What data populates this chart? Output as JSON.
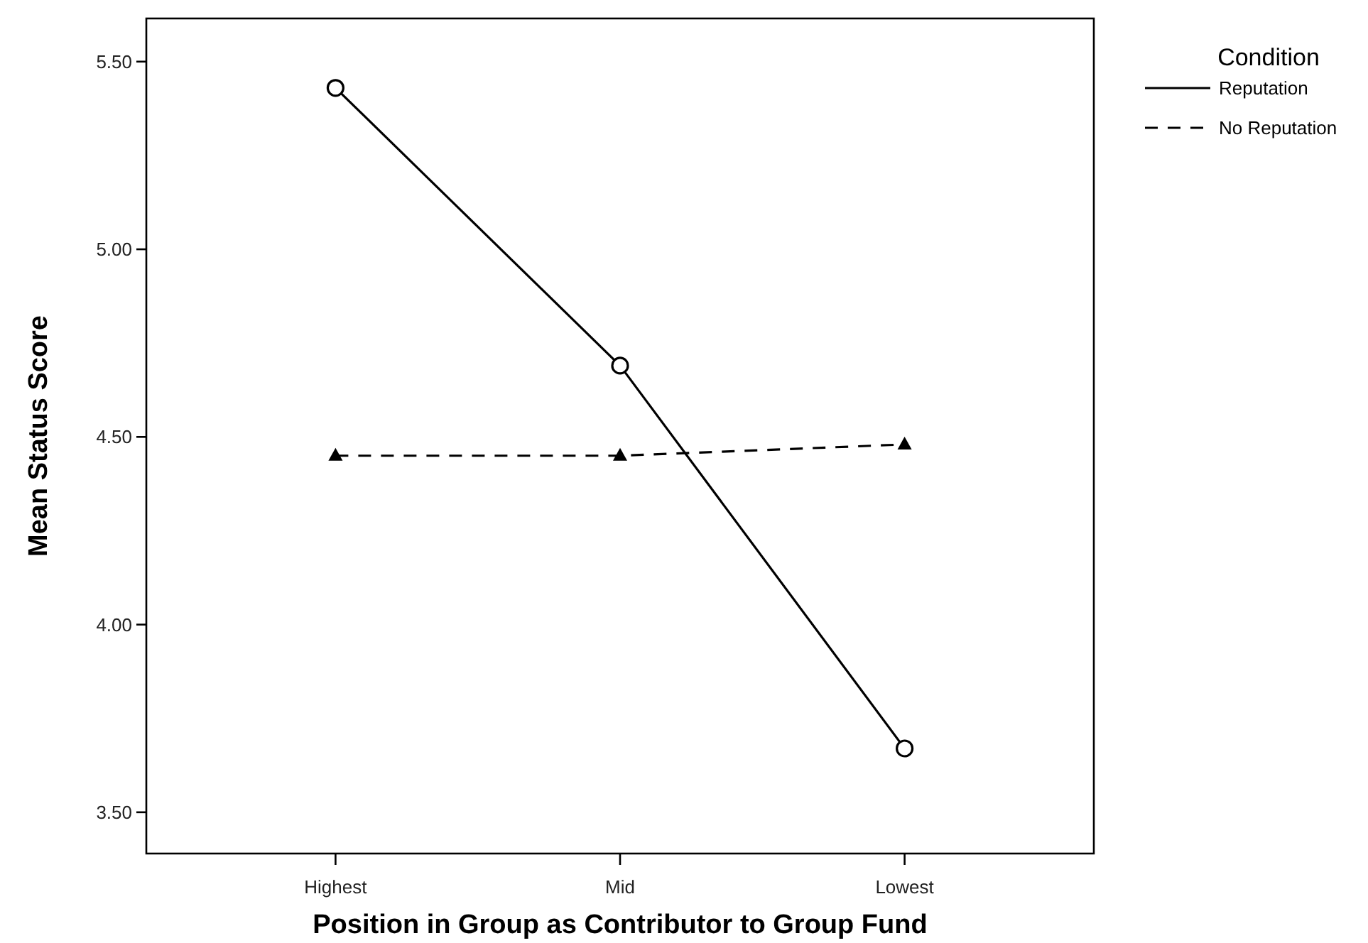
{
  "chart_data": {
    "type": "line",
    "xlabel": "Position in Group as Contributor to Group Fund",
    "ylabel": "Mean Status Score",
    "legend_title": "Condition",
    "legend": "top right",
    "grid": false,
    "categories": [
      "Highest",
      "Mid",
      "Lowest"
    ],
    "ylim": [
      3.39,
      5.615
    ],
    "yticks": [
      {
        "value": 3.5,
        "label": "3.50"
      },
      {
        "value": 4,
        "label": "4.00"
      },
      {
        "value": 4.5,
        "label": "4.50"
      },
      {
        "value": 5,
        "label": "5.00"
      },
      {
        "value": 5.5,
        "label": "5.50"
      }
    ],
    "series": [
      {
        "name": "Reputation",
        "color": "#000000",
        "values": [
          5.43,
          4.69,
          3.67
        ],
        "marker": "circle",
        "line_style": "solid"
      },
      {
        "name": "No Reputation",
        "color": "#000000",
        "values": [
          4.45,
          4.45,
          4.48
        ],
        "marker": "triangle",
        "line_style": "dashed"
      }
    ]
  }
}
